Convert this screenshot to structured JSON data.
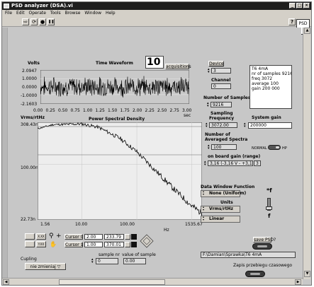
{
  "window": {
    "title": "PSD analyzer (DSA).vi",
    "minimize": "_",
    "maximize": "□",
    "close": "×",
    "tab_label": "PSD"
  },
  "menu": [
    "File",
    "Edit",
    "Operate",
    "Tools",
    "Browse",
    "Window",
    "Help"
  ],
  "toolbar": {
    "run": "⇨",
    "run_continuous": "⟳",
    "stop": "●",
    "pause": "❚❚",
    "help": "?"
  },
  "time_waveform": {
    "title": "Time Waveform",
    "ylabel": "Volts",
    "xlabel": "sec",
    "yticks": [
      "2.0947",
      "1.0000",
      "0.0000",
      "-1.0000",
      "-2.1603"
    ],
    "xticks": [
      "0.00",
      "0.25",
      "0.50",
      "0.75",
      "1.00",
      "1.25",
      "1.50",
      "1.75",
      "2.00",
      "2.25",
      "2.50",
      "2.75",
      "3.00"
    ],
    "acq_count": "10",
    "acq_label": "acquisitions"
  },
  "psd_graph": {
    "title": "Power Spectral Density",
    "ylabel": "Vrms/rtHz",
    "xlabel": "Hz",
    "yticks": [
      "308.43n",
      "100.00n",
      "22.73n"
    ],
    "xticks": [
      "1.56",
      "10.00",
      "100.00",
      "1535.67"
    ]
  },
  "cursors": [
    {
      "name": "Cursor 0",
      "x": "2.00",
      "y": "233.79"
    },
    {
      "name": "Cursor 1",
      "x": "1.00",
      "y": "370.01"
    }
  ],
  "device": {
    "label": "Device",
    "value": "3"
  },
  "channel": {
    "label": "Channel",
    "value": "0"
  },
  "num_samples": {
    "label": "Number of Samples",
    "value": "9216"
  },
  "sampling_freq": {
    "label1": "Sampling",
    "label2": "Frequency",
    "value": "3072.00"
  },
  "system_gain": {
    "label": "System gain",
    "value": "200000"
  },
  "num_averaged": {
    "label1": "Number of",
    "label2": "Averaged Spectra",
    "value": "100"
  },
  "toggle_labels": {
    "left": "NORMAL",
    "right": "HP"
  },
  "board_gain": {
    "label": "on board gain (range)",
    "value": "3,16 (-3,16 V - +3,16 V)",
    "index": "3"
  },
  "info_text": [
    "T6 4mA",
    "nr of samples 9216",
    "freq 3072",
    "average 100",
    "gain 200 000"
  ],
  "window_function": {
    "label": "Data Window Function",
    "value": "None (Uniform)"
  },
  "units": {
    "label": "Units",
    "value": "Vrms/rtHz"
  },
  "scale": {
    "value": "Linear"
  },
  "fsym": {
    "top": "*f",
    "bottom": "f"
  },
  "save_psd": {
    "label": "save PSD?"
  },
  "file_path": "F:\\Damian\\Sprawka\\T6 4mA",
  "save_waveform": {
    "label": "Zapis przebiegu czasowego"
  },
  "cupling": {
    "label": "Cupling",
    "value": "nie zmieniaj"
  },
  "sample_nr": {
    "label": "sample nr",
    "value": "0"
  },
  "sample_value": {
    "label": "value of sample",
    "value": "0.00"
  },
  "graph_tools": {
    "x_fmt": "X.XX",
    "y_fmt": "Y.XX"
  },
  "chart_data": [
    {
      "type": "line",
      "title": "Time Waveform",
      "xlabel": "sec",
      "ylabel": "Volts",
      "xlim": [
        0,
        3
      ],
      "ylim": [
        -2.1603,
        2.0947
      ],
      "series": [
        {
          "values_summary": "noise, approx amplitude ±1.0 V, mean 0.0"
        }
      ]
    },
    {
      "type": "line",
      "title": "Power Spectral Density",
      "xlabel": "Hz",
      "ylabel": "Vrms/rtHz",
      "xlim": [
        1.56,
        1535.67
      ],
      "ylim": [
        2.273e-08,
        3.0843e-07
      ],
      "x": [
        1.56,
        3,
        10,
        20,
        50,
        100,
        200,
        500,
        1000,
        1535.67
      ],
      "series": [
        {
          "values": [
            2.6e-07,
            2.9e-07,
            2.95e-07,
            2.7e-07,
            2e-07,
            1.4e-07,
            9e-08,
            5e-08,
            3.3e-08,
            2.7e-08
          ]
        }
      ]
    }
  ]
}
